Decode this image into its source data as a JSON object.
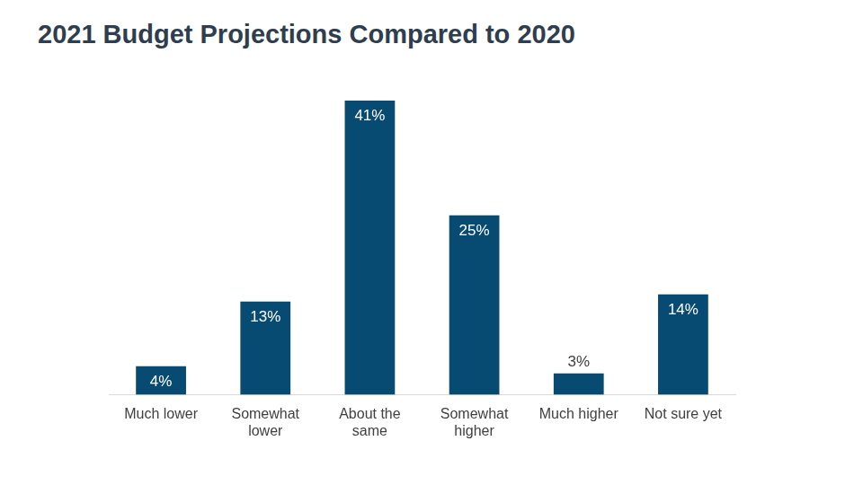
{
  "chart_data": {
    "type": "bar",
    "title": "2021 Budget Projections Compared to 2020",
    "categories": [
      "Much lower",
      "Somewhat lower",
      "About the same",
      "Somewhat higher",
      "Much higher",
      "Not sure yet"
    ],
    "values": [
      4,
      13,
      41,
      25,
      3,
      14
    ],
    "value_labels": [
      "4%",
      "13%",
      "41%",
      "25%",
      "3%",
      "14%"
    ],
    "color": "#074a72",
    "ylim": [
      0,
      45
    ],
    "grid": false,
    "data_labels": true,
    "tick_labels": "x"
  }
}
